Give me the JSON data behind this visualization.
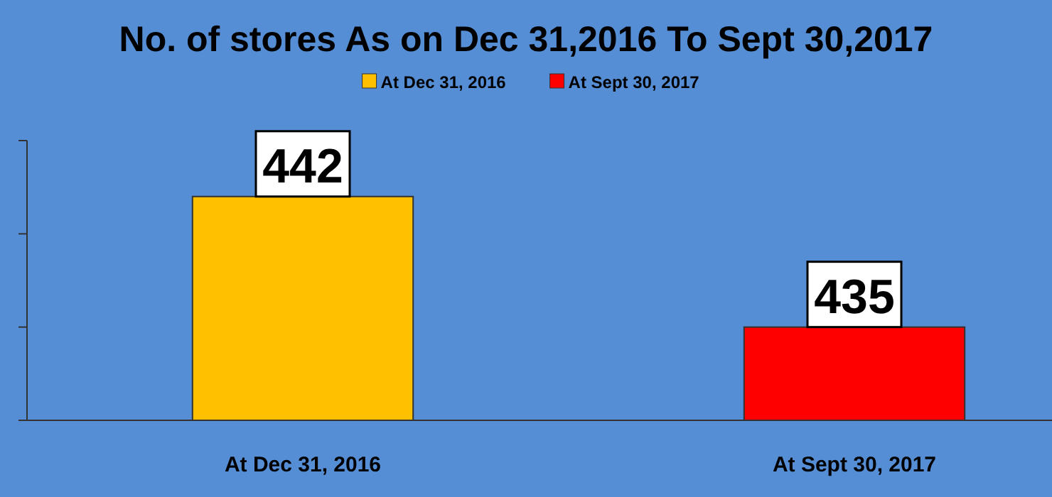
{
  "chart_data": {
    "type": "bar",
    "title": "No. of stores As on Dec 31,2016 To Sept 30,2017",
    "categories": [
      "At Dec 31, 2016",
      "At Sept 30, 2017"
    ],
    "series": [
      {
        "name": "At Dec 31, 2016",
        "color": "#ffc000",
        "values": [
          442,
          null
        ]
      },
      {
        "name": "At Sept 30, 2017",
        "color": "#ff0000",
        "values": [
          null,
          435
        ]
      }
    ],
    "ylim": [
      430,
      445
    ],
    "yticks": [
      {
        "value": 430,
        "label": null
      },
      {
        "value": 435,
        "label": null
      },
      {
        "value": 440,
        "label": null
      },
      {
        "value": 445,
        "label": null
      }
    ],
    "tick_labels": "x",
    "data_labels": true,
    "legend": "top",
    "grid": false
  }
}
